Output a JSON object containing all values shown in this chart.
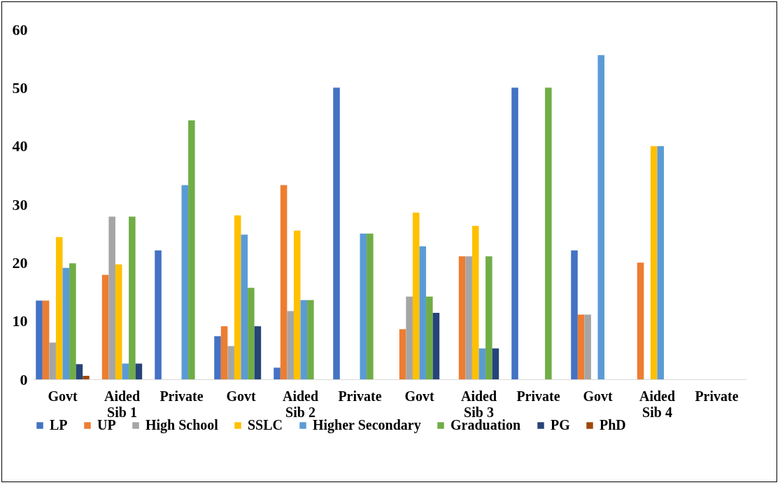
{
  "chart_data": {
    "type": "bar",
    "categories": [
      "Govt",
      "Aided",
      "Private",
      "Govt",
      "Aided",
      "Private",
      "Govt",
      "Aided",
      "Private",
      "Govt",
      "Aided",
      "Private"
    ],
    "annotations": [
      "Sib 1",
      "Sib 2",
      "Sib 3",
      "Sib 4"
    ],
    "ylim": [
      0,
      60
    ],
    "yticks": [
      0,
      10,
      20,
      30,
      40,
      50,
      60
    ],
    "grid": false,
    "legend": "bottom",
    "series": [
      {
        "name": "LP",
        "color": "#4472c4",
        "values": [
          13.5,
          null,
          22.1,
          7.4,
          2.0,
          50,
          null,
          null,
          50,
          22.1,
          null,
          null
        ]
      },
      {
        "name": "UP",
        "color": "#ed7d31",
        "values": [
          13.5,
          17.9,
          null,
          9.1,
          33.3,
          null,
          8.6,
          21.1,
          null,
          11.1,
          20,
          null
        ]
      },
      {
        "name": "High School",
        "color": "#a5a5a5",
        "values": [
          6.3,
          27.9,
          null,
          5.7,
          11.7,
          null,
          14.2,
          21.1,
          null,
          11.1,
          null,
          null
        ]
      },
      {
        "name": "SSLC",
        "color": "#ffc000",
        "values": [
          24.4,
          19.7,
          null,
          28.1,
          25.5,
          null,
          28.6,
          26.3,
          null,
          null,
          40,
          null
        ]
      },
      {
        "name": "Higher Secondary",
        "color": "#5b9bd5",
        "values": [
          19.1,
          2.7,
          33.3,
          24.8,
          13.6,
          25,
          22.8,
          5.3,
          null,
          55.6,
          40,
          null
        ]
      },
      {
        "name": "Graduation",
        "color": "#70ad47",
        "values": [
          19.9,
          27.9,
          44.4,
          15.7,
          13.6,
          25,
          14.2,
          21.1,
          50,
          null,
          null,
          null
        ]
      },
      {
        "name": "PG",
        "color": "#264478",
        "values": [
          2.6,
          2.7,
          null,
          9.1,
          null,
          null,
          11.4,
          5.3,
          null,
          null,
          null,
          null
        ]
      },
      {
        "name": "PhD",
        "color": "#9e480e",
        "values": [
          0.6,
          null,
          null,
          null,
          null,
          null,
          null,
          null,
          null,
          null,
          null,
          null
        ]
      }
    ]
  }
}
